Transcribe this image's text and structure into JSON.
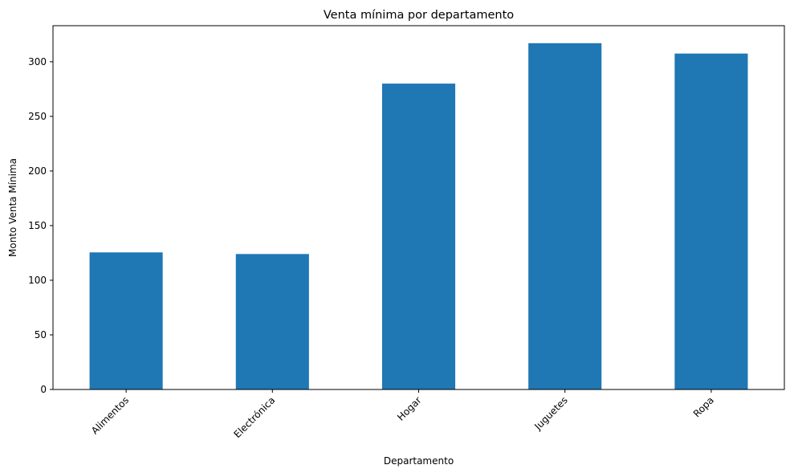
{
  "chart_data": {
    "type": "bar",
    "title": "Venta mínima por departamento",
    "xlabel": "Departamento",
    "ylabel": "Monto Venta Mínima",
    "categories": [
      "Alimentos",
      "Electrónica",
      "Hogar",
      "Juguetes",
      "Ropa"
    ],
    "values": [
      125.5,
      124,
      280,
      317,
      307.5
    ],
    "ylim": [
      0,
      333
    ],
    "yticks": [
      0,
      50,
      100,
      150,
      200,
      250,
      300
    ],
    "grid": false,
    "legend": "none",
    "bar_color": "#1f77b4",
    "tick_label_rotation": 45
  }
}
